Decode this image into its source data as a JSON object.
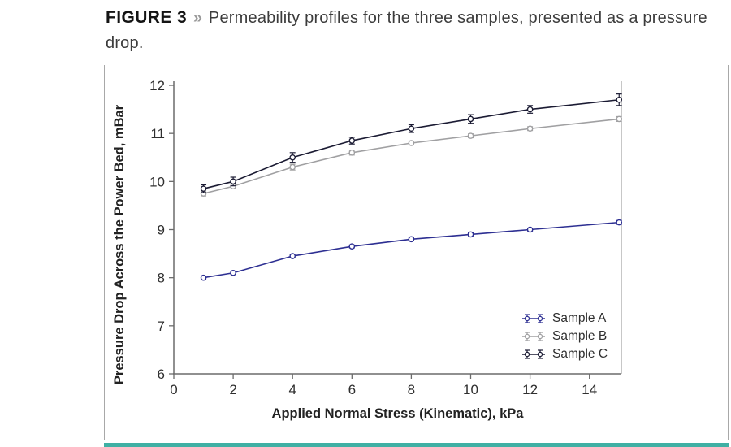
{
  "figure": {
    "label": "FIGURE 3",
    "separator": "»",
    "caption": "Permeability profiles for the three samples, presented as a pressure drop."
  },
  "accent_color": "#3fb0a4",
  "chart_data": {
    "type": "line",
    "title": "",
    "xlabel": "Applied Normal Stress (Kinematic), kPa",
    "ylabel": "Pressure Drop Across the Power Bed, mBar",
    "xlim": [
      0,
      15.1
    ],
    "ylim": [
      6,
      12
    ],
    "xticks": [
      0,
      2,
      4,
      6,
      8,
      10,
      12,
      14
    ],
    "yticks": [
      6,
      7,
      8,
      9,
      10,
      11,
      12
    ],
    "grid": false,
    "legend_position": "lower right",
    "marker": "open-circle",
    "error_bars": true,
    "x": [
      1,
      2,
      4,
      6,
      8,
      10,
      12,
      15
    ],
    "series": [
      {
        "name": "Sample A",
        "color": "#2d2f92",
        "values": [
          8.0,
          8.1,
          8.45,
          8.65,
          8.8,
          8.9,
          9.0,
          9.15
        ],
        "errors": [
          0.03,
          0.03,
          0.03,
          0.03,
          0.03,
          0.03,
          0.03,
          0.04
        ]
      },
      {
        "name": "Sample B",
        "color": "#a0a0a2",
        "values": [
          9.75,
          9.9,
          10.3,
          10.6,
          10.8,
          10.95,
          11.1,
          11.3
        ],
        "errors": [
          0.05,
          0.05,
          0.06,
          0.05,
          0.04,
          0.04,
          0.04,
          0.05
        ]
      },
      {
        "name": "Sample C",
        "color": "#1b1b33",
        "values": [
          9.85,
          10.0,
          10.5,
          10.85,
          11.1,
          11.3,
          11.5,
          11.7
        ],
        "errors": [
          0.08,
          0.09,
          0.1,
          0.07,
          0.08,
          0.09,
          0.08,
          0.12
        ]
      }
    ],
    "axis_color": "#6b6b6b",
    "tick_label_color": "#2f2f2f"
  }
}
